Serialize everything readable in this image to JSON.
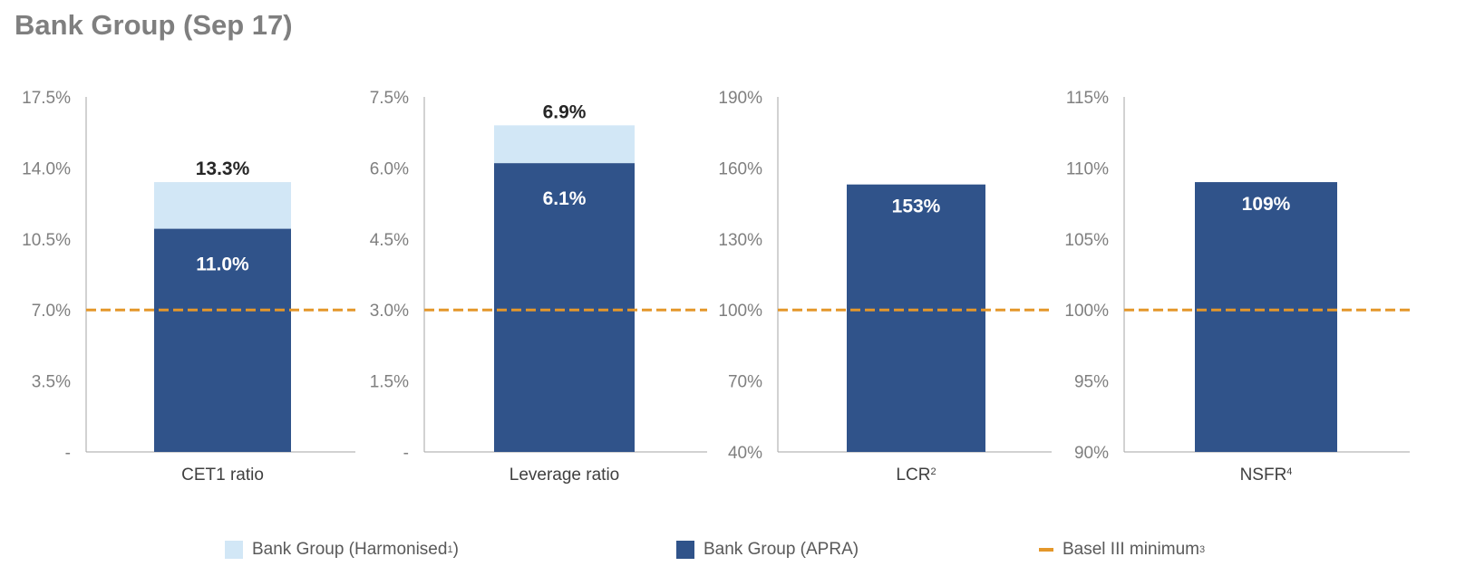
{
  "title": "Bank Group (Sep 17)",
  "colors": {
    "harmonised": "#d2e7f6",
    "apra": "#30538a",
    "basel": "#e4972a",
    "axis": "#a6a6a6",
    "tick_text": "#7f7f7f",
    "label_text": "#404040"
  },
  "legend": {
    "harmonised": {
      "label": "Bank Group (Harmonised",
      "sup": "1",
      "suffix": ")"
    },
    "apra": {
      "label": "Bank Group (APRA)"
    },
    "basel": {
      "label": "Basel III minimum",
      "sup": "3"
    }
  },
  "chart_data": [
    {
      "type": "bar",
      "categories": [
        "CET1 ratio"
      ],
      "category_sup": "",
      "series": [
        {
          "name": "Bank Group (APRA)",
          "values": [
            11.0
          ],
          "labels": [
            "11.0%"
          ]
        },
        {
          "name": "Bank Group (Harmonised)",
          "values": [
            13.3
          ],
          "labels": [
            "13.3%"
          ]
        }
      ],
      "reference_line": {
        "name": "Basel III minimum",
        "value": 7.0
      },
      "ylim": [
        0,
        17.5
      ],
      "yticks": [
        0,
        3.5,
        7.0,
        10.5,
        14.0,
        17.5
      ],
      "ytick_labels": [
        "-",
        "3.5%",
        "7.0%",
        "10.5%",
        "14.0%",
        "17.5%"
      ]
    },
    {
      "type": "bar",
      "categories": [
        "Leverage ratio"
      ],
      "category_sup": "",
      "series": [
        {
          "name": "Bank Group (APRA)",
          "values": [
            6.1
          ],
          "labels": [
            "6.1%"
          ]
        },
        {
          "name": "Bank Group (Harmonised)",
          "values": [
            6.9
          ],
          "labels": [
            "6.9%"
          ]
        }
      ],
      "reference_line": {
        "name": "Basel III minimum",
        "value": 3.0
      },
      "ylim": [
        0,
        7.5
      ],
      "yticks": [
        0,
        1.5,
        3.0,
        4.5,
        6.0,
        7.5
      ],
      "ytick_labels": [
        "-",
        "1.5%",
        "3.0%",
        "4.5%",
        "6.0%",
        "7.5%"
      ]
    },
    {
      "type": "bar",
      "categories": [
        "LCR"
      ],
      "category_sup": "2",
      "series": [
        {
          "name": "Bank Group (APRA)",
          "values": [
            153
          ],
          "labels": [
            "153%"
          ]
        }
      ],
      "reference_line": {
        "name": "Basel III minimum",
        "value": 100
      },
      "ylim": [
        40,
        190
      ],
      "yticks": [
        40,
        70,
        100,
        130,
        160,
        190
      ],
      "ytick_labels": [
        "40%",
        "70%",
        "100%",
        "130%",
        "160%",
        "190%"
      ]
    },
    {
      "type": "bar",
      "categories": [
        "NSFR"
      ],
      "category_sup": "4",
      "series": [
        {
          "name": "Bank Group (APRA)",
          "values": [
            109
          ],
          "labels": [
            "109%"
          ]
        }
      ],
      "reference_line": {
        "name": "Basel III minimum",
        "value": 100
      },
      "ylim": [
        90,
        115
      ],
      "yticks": [
        90,
        95,
        100,
        105,
        110,
        115
      ],
      "ytick_labels": [
        "90%",
        "95%",
        "100%",
        "105%",
        "110%",
        "115%"
      ]
    }
  ]
}
